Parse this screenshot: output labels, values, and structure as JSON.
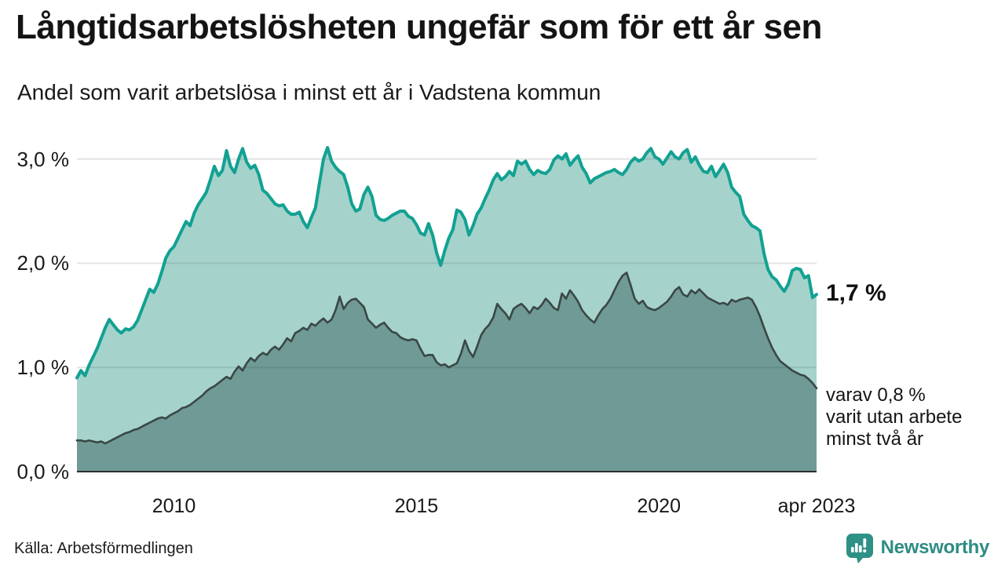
{
  "header": {
    "title": "Långtidsarbetslösheten ungefär som för ett år sen",
    "subtitle": "Andel som varit arbetslösa i minst ett år i Vadstena kommun"
  },
  "chart_data": {
    "type": "area",
    "title": "Långtidsarbetslösheten ungefär som för ett år sen",
    "subtitle": "Andel som varit arbetslösa i minst ett år i Vadstena kommun",
    "unit": "%",
    "frequency": "monthly",
    "x_start": "jan 2008",
    "x_end": "apr 2023",
    "ylim": [
      0,
      3.15
    ],
    "grid": "horizontal",
    "legend_position": "none",
    "series": [
      {
        "name": "andel arbetslösa minst ett år",
        "color": "#12a192",
        "fill": "#a5d3cb",
        "last_value_label": "1,7 %",
        "values": [
          0.9,
          0.97,
          0.92,
          1.02,
          1.1,
          1.18,
          1.28,
          1.38,
          1.46,
          1.41,
          1.36,
          1.33,
          1.37,
          1.36,
          1.39,
          1.45,
          1.55,
          1.65,
          1.75,
          1.72,
          1.8,
          1.92,
          2.05,
          2.12,
          2.16,
          2.24,
          2.32,
          2.4,
          2.36,
          2.48,
          2.56,
          2.62,
          2.68,
          2.8,
          2.93,
          2.84,
          2.89,
          3.08,
          2.93,
          2.87,
          3.0,
          3.1,
          2.97,
          2.91,
          2.94,
          2.85,
          2.7,
          2.67,
          2.62,
          2.57,
          2.55,
          2.56,
          2.5,
          2.47,
          2.47,
          2.49,
          2.4,
          2.34,
          2.44,
          2.53,
          2.77,
          3.0,
          3.11,
          2.98,
          2.92,
          2.88,
          2.85,
          2.73,
          2.57,
          2.5,
          2.52,
          2.66,
          2.73,
          2.64,
          2.46,
          2.42,
          2.41,
          2.43,
          2.46,
          2.48,
          2.5,
          2.5,
          2.45,
          2.43,
          2.37,
          2.29,
          2.27,
          2.38,
          2.27,
          2.1,
          1.98,
          2.12,
          2.24,
          2.32,
          2.51,
          2.49,
          2.42,
          2.27,
          2.36,
          2.47,
          2.53,
          2.62,
          2.7,
          2.8,
          2.86,
          2.8,
          2.83,
          2.88,
          2.84,
          2.98,
          2.95,
          2.98,
          2.9,
          2.85,
          2.89,
          2.87,
          2.86,
          2.9,
          2.99,
          3.03,
          3.0,
          3.05,
          2.94,
          2.99,
          3.03,
          2.92,
          2.86,
          2.77,
          2.81,
          2.83,
          2.85,
          2.87,
          2.88,
          2.9,
          2.87,
          2.85,
          2.9,
          2.97,
          3.01,
          2.98,
          3.0,
          3.06,
          3.1,
          3.02,
          3.0,
          2.95,
          3.01,
          3.07,
          3.02,
          3.0,
          3.06,
          3.09,
          2.97,
          3.02,
          2.94,
          2.88,
          2.87,
          2.93,
          2.83,
          2.89,
          2.95,
          2.87,
          2.73,
          2.68,
          2.64,
          2.47,
          2.41,
          2.36,
          2.34,
          2.31,
          2.09,
          1.94,
          1.87,
          1.84,
          1.78,
          1.73,
          1.8,
          1.93,
          1.95,
          1.94,
          1.86,
          1.88,
          1.67,
          1.7
        ]
      },
      {
        "name": "varav arbetslösa minst två år",
        "color": "#3a4745",
        "fill": "#6f9a96",
        "last_value_label": "0,8 %",
        "values": [
          0.3,
          0.3,
          0.29,
          0.3,
          0.29,
          0.28,
          0.29,
          0.27,
          0.29,
          0.31,
          0.33,
          0.35,
          0.37,
          0.38,
          0.4,
          0.41,
          0.43,
          0.45,
          0.47,
          0.49,
          0.51,
          0.52,
          0.51,
          0.54,
          0.56,
          0.58,
          0.61,
          0.62,
          0.64,
          0.67,
          0.7,
          0.73,
          0.77,
          0.8,
          0.82,
          0.85,
          0.88,
          0.91,
          0.89,
          0.96,
          1.01,
          0.97,
          1.04,
          1.09,
          1.06,
          1.11,
          1.14,
          1.12,
          1.17,
          1.2,
          1.17,
          1.22,
          1.28,
          1.25,
          1.33,
          1.35,
          1.38,
          1.36,
          1.42,
          1.4,
          1.44,
          1.47,
          1.43,
          1.46,
          1.55,
          1.68,
          1.56,
          1.62,
          1.65,
          1.66,
          1.62,
          1.58,
          1.46,
          1.42,
          1.38,
          1.41,
          1.43,
          1.38,
          1.34,
          1.33,
          1.29,
          1.27,
          1.26,
          1.27,
          1.26,
          1.18,
          1.11,
          1.12,
          1.12,
          1.05,
          1.02,
          1.03,
          1.0,
          1.02,
          1.04,
          1.13,
          1.26,
          1.16,
          1.1,
          1.2,
          1.31,
          1.37,
          1.41,
          1.48,
          1.61,
          1.56,
          1.52,
          1.46,
          1.56,
          1.59,
          1.61,
          1.57,
          1.52,
          1.58,
          1.56,
          1.6,
          1.66,
          1.62,
          1.57,
          1.55,
          1.71,
          1.66,
          1.74,
          1.69,
          1.63,
          1.55,
          1.5,
          1.46,
          1.43,
          1.5,
          1.56,
          1.6,
          1.66,
          1.74,
          1.82,
          1.88,
          1.91,
          1.79,
          1.66,
          1.61,
          1.64,
          1.58,
          1.56,
          1.55,
          1.57,
          1.6,
          1.63,
          1.68,
          1.74,
          1.77,
          1.7,
          1.68,
          1.74,
          1.71,
          1.75,
          1.71,
          1.67,
          1.65,
          1.63,
          1.61,
          1.62,
          1.6,
          1.65,
          1.63,
          1.65,
          1.66,
          1.67,
          1.65,
          1.58,
          1.49,
          1.38,
          1.28,
          1.19,
          1.12,
          1.06,
          1.03,
          1.0,
          0.97,
          0.95,
          0.93,
          0.92,
          0.89,
          0.85,
          0.8
        ]
      }
    ],
    "y_ticks": [
      {
        "value": 0,
        "label": "0,0 %"
      },
      {
        "value": 1,
        "label": "1,0 %"
      },
      {
        "value": 2,
        "label": "2,0 %"
      },
      {
        "value": 3,
        "label": "3,0 %"
      }
    ],
    "x_ticks": [
      {
        "month_index": 24,
        "label": "2010"
      },
      {
        "month_index": 84,
        "label": "2015"
      },
      {
        "month_index": 144,
        "label": "2020"
      },
      {
        "month_index": 183,
        "label": "apr 2023"
      }
    ],
    "annotations": [
      {
        "text": "1,7 %",
        "bold": true
      },
      {
        "text": "varav 0,8 %\nvarit utan arbete\nminst två år",
        "bold": false
      }
    ]
  },
  "footer": {
    "source": "Källa: Arbetsförmedlingen",
    "brand": "Newsworthy"
  },
  "colors": {
    "line_1yr": "#12a192",
    "fill_1yr": "#a5d3cb",
    "line_2yr": "#3a4745",
    "fill_2yr": "#6f9a96",
    "brand_teal": "#2d8c83",
    "gridline": "rgba(45,65,75,0.14)",
    "baseline": "#2f2f2f"
  }
}
